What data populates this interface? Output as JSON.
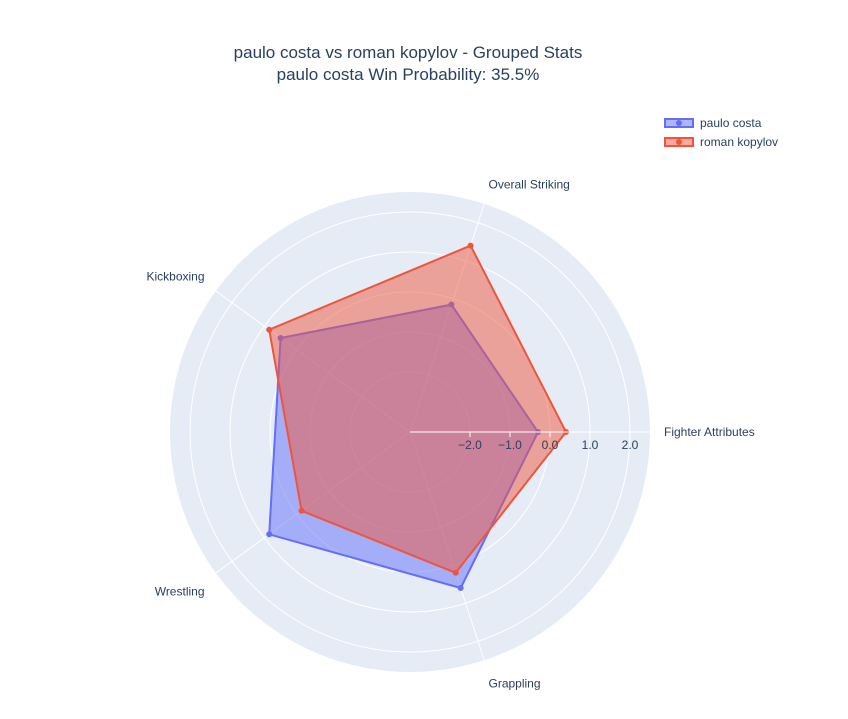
{
  "chart_data": {
    "type": "radar",
    "title_line1": "paulo costa vs roman kopylov - Grouped Stats",
    "title_line2": "paulo costa Win Probability: 35.5%",
    "categories": [
      "Fighter Attributes",
      "Overall Striking",
      "Kickboxing",
      "Wrestling",
      "Grappling"
    ],
    "radial_range": [
      -3.5,
      2.5
    ],
    "radial_ticks": [
      -2.0,
      -1.0,
      0.0,
      1.0,
      2.0
    ],
    "radial_tick_labels": [
      "−2.0",
      "−1.0",
      "0.0",
      "1.0",
      "2.0"
    ],
    "legend_position": "top-right",
    "series": [
      {
        "name": "paulo costa",
        "color": "#636efa",
        "fill": "rgba(99,110,250,0.5)",
        "values": [
          -0.3,
          -0.15,
          0.5,
          0.85,
          0.6
        ]
      },
      {
        "name": "roman kopylov",
        "color": "#ef553b",
        "fill": "rgba(239,85,59,0.5)",
        "values": [
          0.4,
          1.4,
          0.85,
          -0.15,
          0.2
        ]
      }
    ]
  }
}
